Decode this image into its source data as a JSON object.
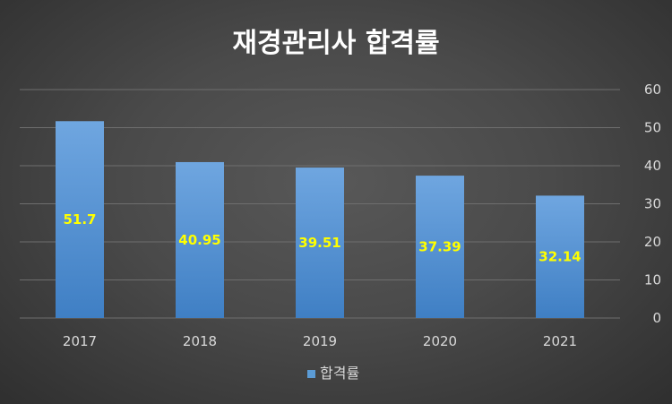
{
  "chart_data": {
    "type": "bar",
    "title": "재경관리사 합격률",
    "categories": [
      "2017",
      "2018",
      "2019",
      "2020",
      "2021"
    ],
    "series": [
      {
        "name": "합격률",
        "values": [
          51.7,
          40.95,
          39.51,
          37.39,
          32.14
        ]
      }
    ],
    "ylim": [
      0,
      60
    ],
    "yticks": [
      0,
      10,
      20,
      30,
      40,
      50,
      60
    ],
    "y_axis_side": "right",
    "grid": true,
    "legend": "bottom",
    "data_labels": true,
    "colors": {
      "bar_top": "#6fa6e0",
      "bar_bottom": "#3f7fc4",
      "data_label": "#ffff00"
    }
  }
}
